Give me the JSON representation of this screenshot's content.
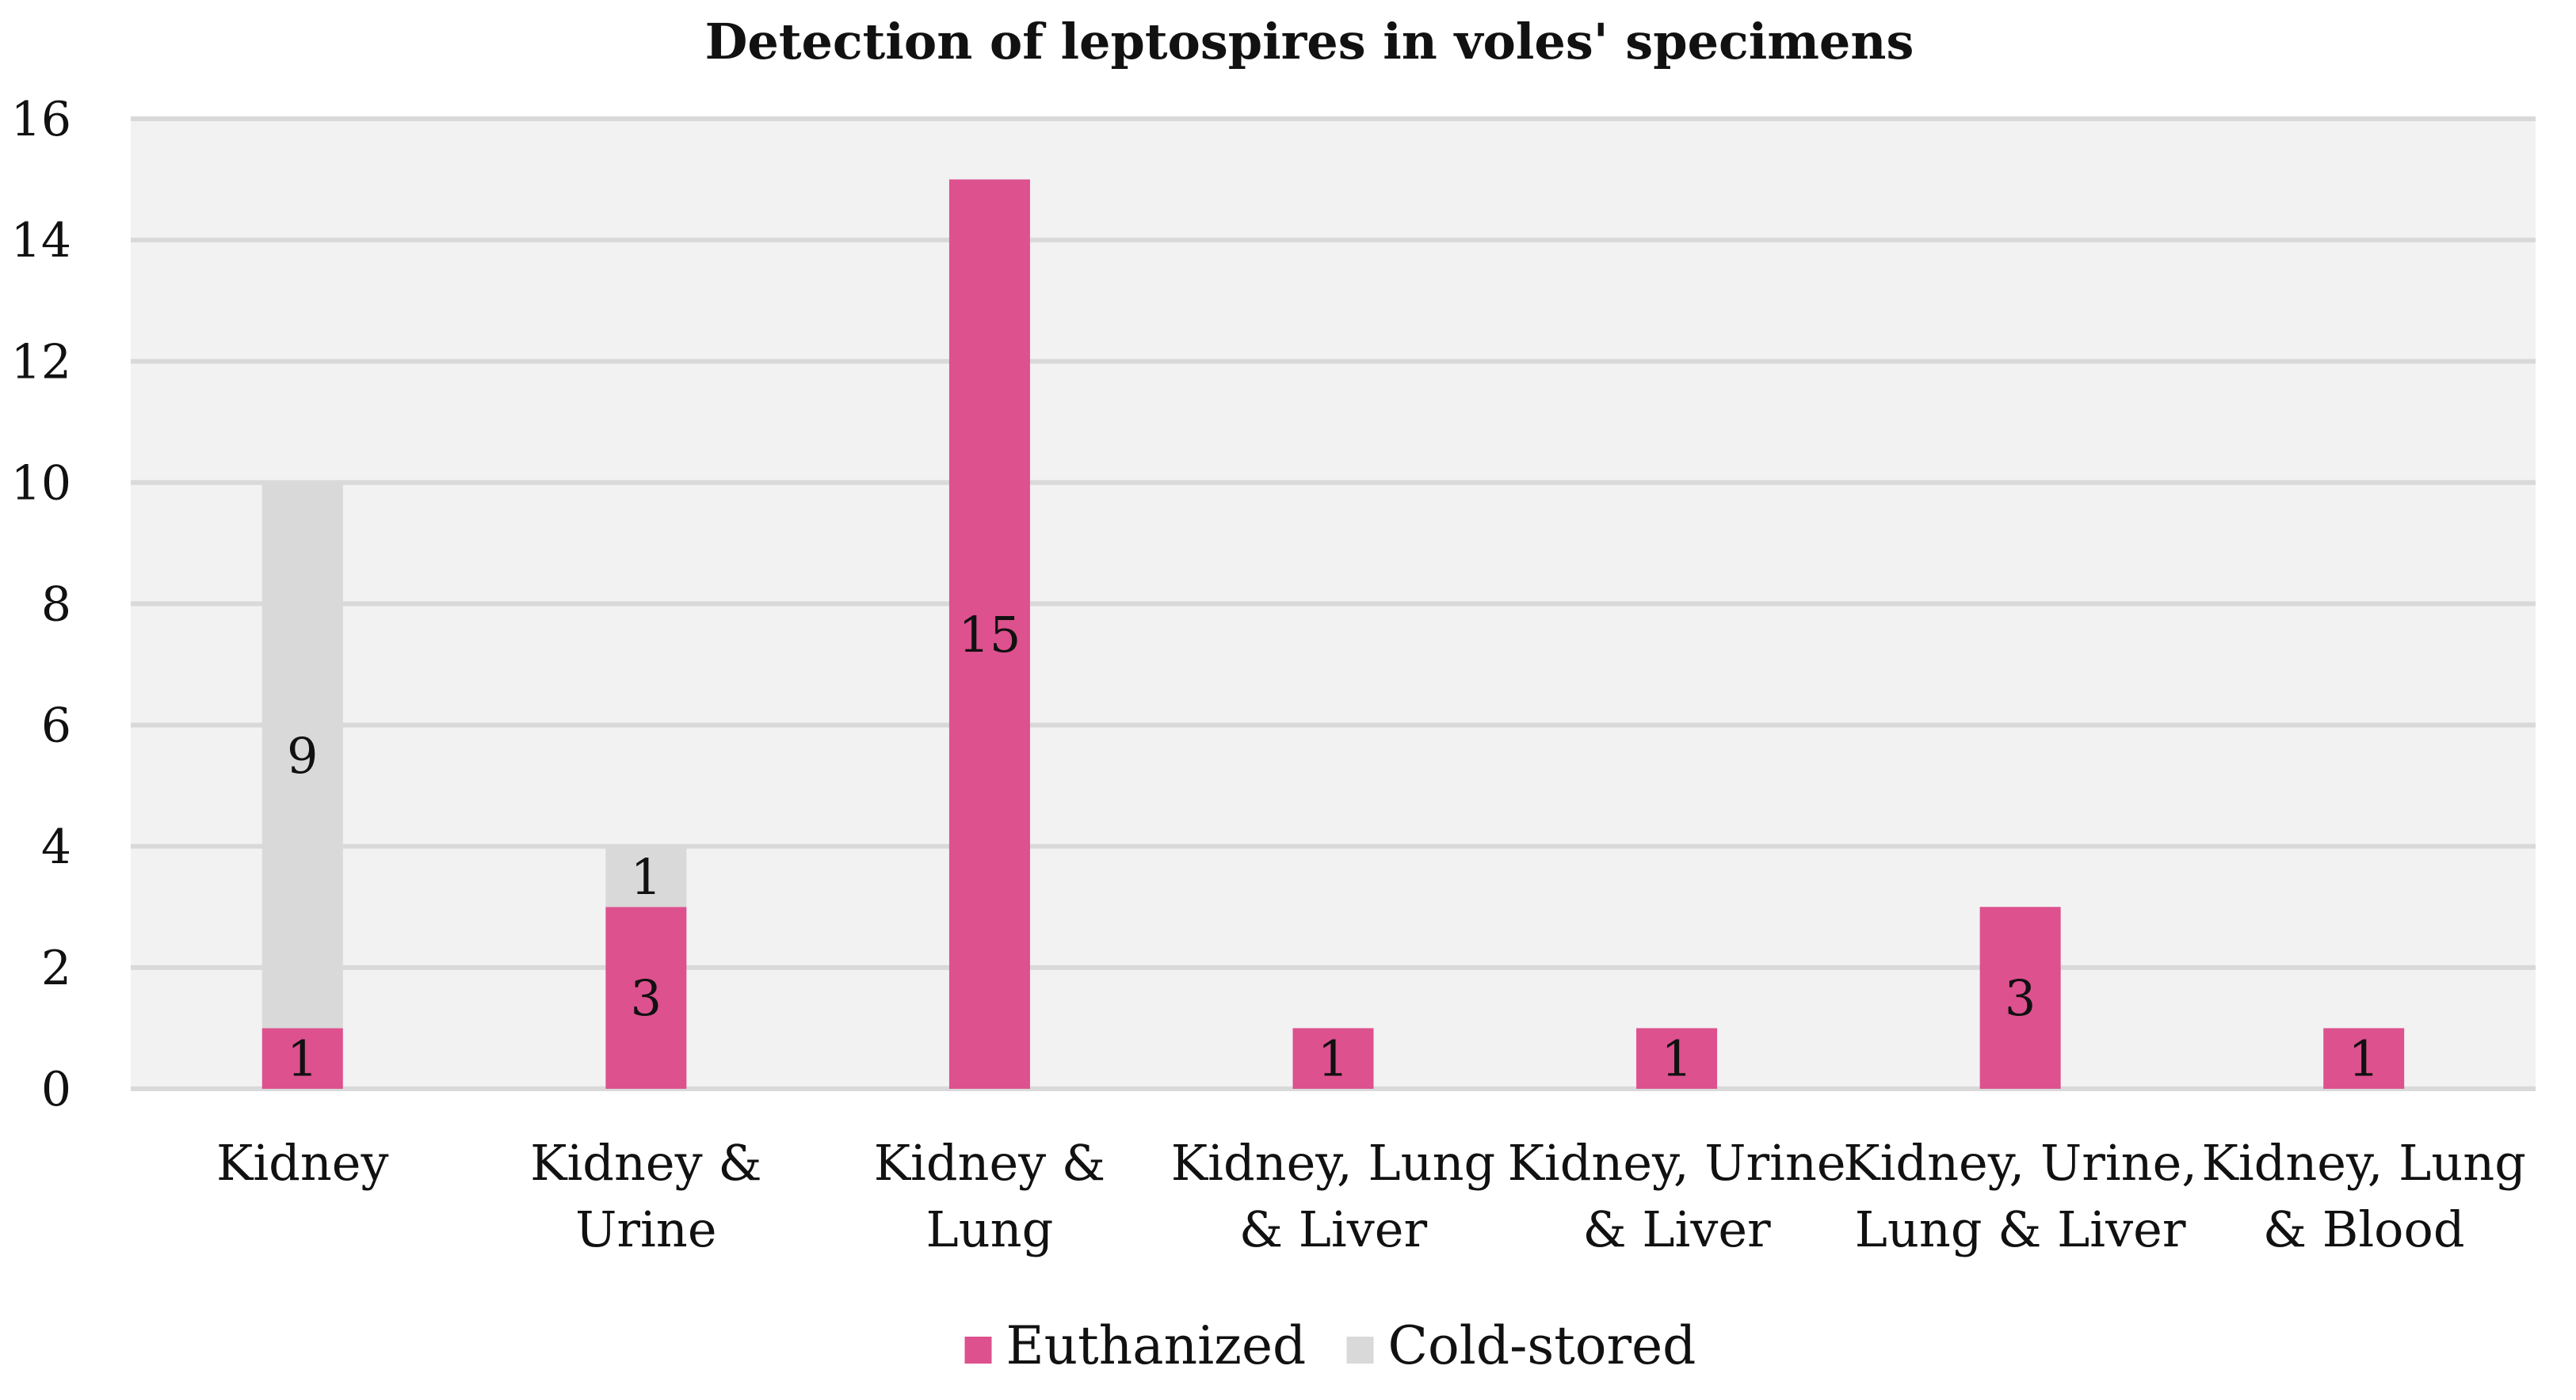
{
  "chart_data": {
    "type": "bar",
    "stacked": true,
    "title": "Detection of leptospires in voles' specimens",
    "xlabel": "",
    "ylabel": "",
    "ylim": [
      0,
      16
    ],
    "yticks": [
      0,
      2,
      4,
      6,
      8,
      10,
      12,
      14,
      16
    ],
    "grid": true,
    "legend_position": "bottom-center",
    "categories": [
      [
        "Kidney"
      ],
      [
        "Kidney &",
        "Urine"
      ],
      [
        "Kidney &",
        "Lung"
      ],
      [
        "Kidney, Lung",
        "& Liver"
      ],
      [
        "Kidney, Urine",
        "& Liver"
      ],
      [
        "Kidney, Urine,",
        "Lung & Liver"
      ],
      [
        "Kidney, Lung",
        "& Blood"
      ]
    ],
    "series": [
      {
        "name": "Euthanized",
        "color": "#DC518E",
        "values": [
          1,
          3,
          15,
          1,
          1,
          3,
          1
        ],
        "labels": [
          "1",
          "3",
          "15",
          "1",
          "1",
          "3",
          "1"
        ]
      },
      {
        "name": "Cold-stored",
        "color": "#D9D9D9",
        "values": [
          9,
          1,
          0,
          0,
          0,
          0,
          0
        ],
        "labels": [
          "9",
          "1",
          "",
          "",
          "",
          "",
          ""
        ]
      }
    ],
    "plot_background": "#F2F2F2",
    "gridline_color": "#D9D9D9"
  }
}
